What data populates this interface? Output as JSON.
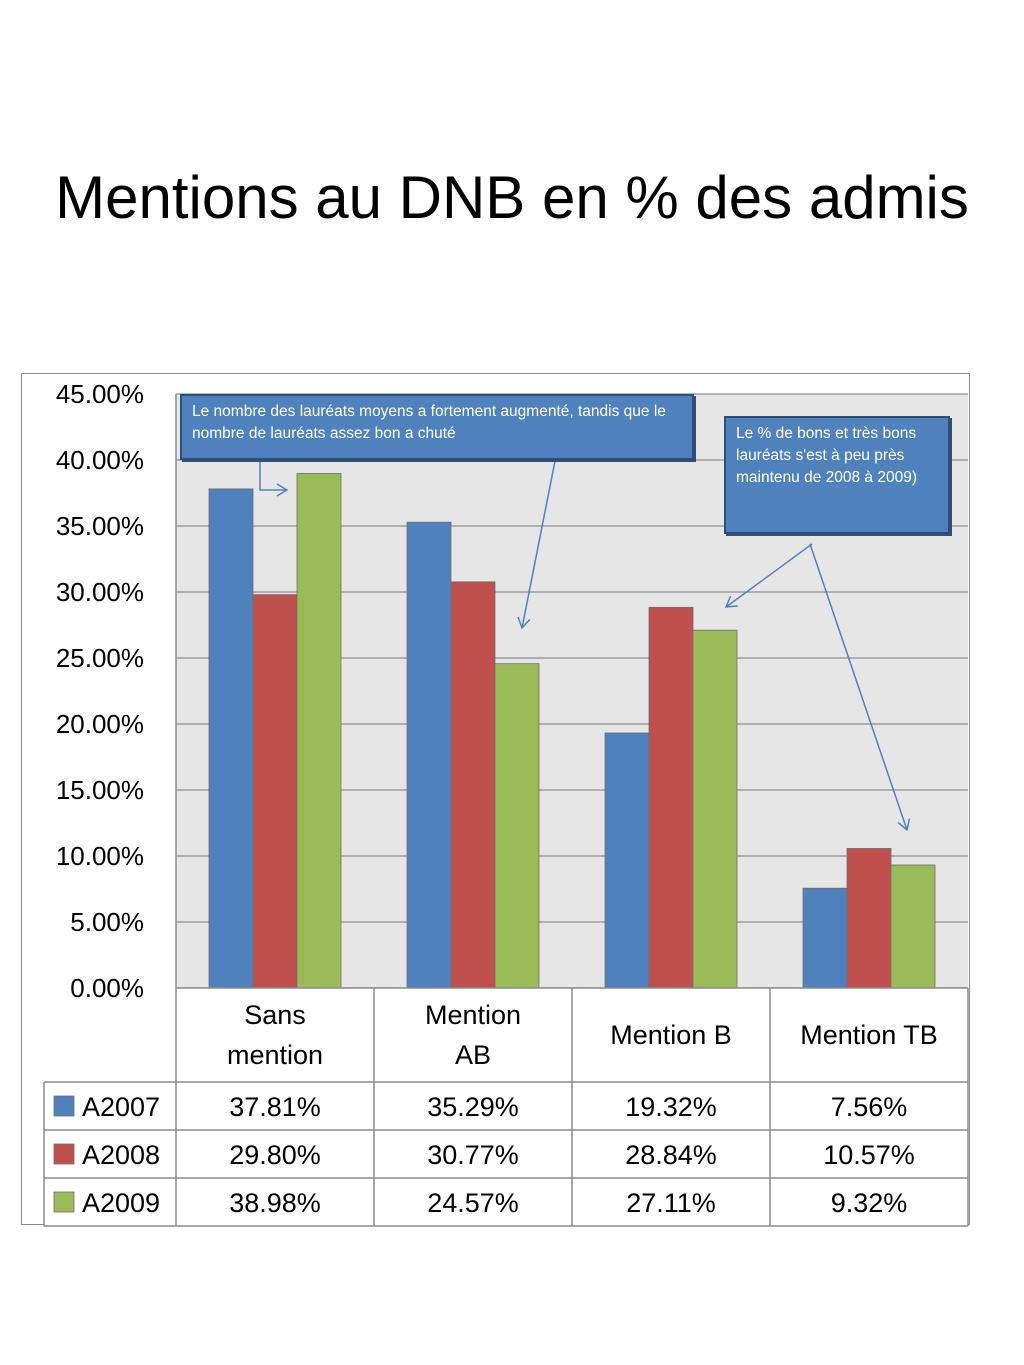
{
  "chart_data": {
    "type": "bar",
    "title": "Mentions au DNB en % des admis",
    "categories": [
      "Sans mention",
      "Mention AB",
      "Mention B",
      "Mention TB"
    ],
    "category_labels": [
      [
        "Sans",
        "mention"
      ],
      [
        "Mention",
        "AB"
      ],
      [
        "Mention B"
      ],
      [
        "Mention TB"
      ]
    ],
    "series": [
      {
        "name": "A2007",
        "color": "#4f81bd",
        "values": [
          37.81,
          35.29,
          19.32,
          7.56
        ],
        "labels": [
          "37.81%",
          "35.29%",
          "19.32%",
          "7.56%"
        ]
      },
      {
        "name": "A2008",
        "color": "#c0504d",
        "values": [
          29.8,
          30.77,
          28.84,
          10.57
        ],
        "labels": [
          "29.80%",
          "30.77%",
          "28.84%",
          "10.57%"
        ]
      },
      {
        "name": "A2009",
        "color": "#9bbb59",
        "values": [
          38.98,
          24.57,
          27.11,
          9.32
        ],
        "labels": [
          "38.98%",
          "24.57%",
          "27.11%",
          "9.32%"
        ]
      }
    ],
    "ylim": [
      0,
      45
    ],
    "yticks": [
      "0.00%",
      "5.00%",
      "10.00%",
      "15.00%",
      "20.00%",
      "25.00%",
      "30.00%",
      "35.00%",
      "40.00%",
      "45.00%"
    ],
    "grid": true,
    "legend": "data-table",
    "annotations": [
      {
        "text": "Le nombre des lauréats moyens a fortement augmenté, tandis que le nombre de lauréats assez bon a chuté"
      },
      {
        "text": "Le % de bons et très bons lauréats s'est à peu près maintenu de 2008 à 2009)"
      }
    ]
  },
  "colors": {
    "plot_background": "#e6e6e6",
    "gridline": "#8c8c8c",
    "note_fill": "#4f81bd",
    "note_border": "#2a4f7d",
    "arrow": "#4f81bd"
  }
}
